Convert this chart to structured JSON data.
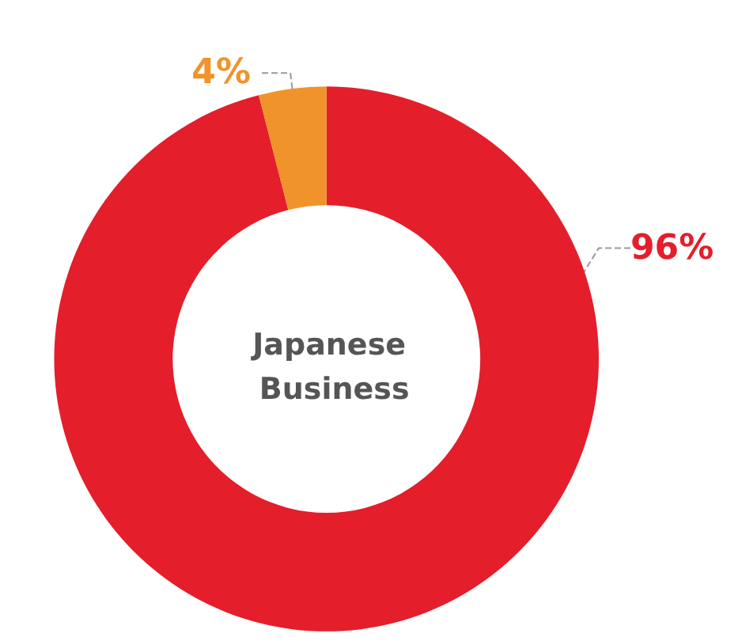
{
  "chart_data": {
    "type": "donut",
    "title": "Japanese Business",
    "categories": [
      null,
      null
    ],
    "values": [
      96,
      4
    ],
    "colors": [
      "#e41e2b",
      "#f0932b"
    ],
    "value_labels": [
      "96%",
      "4%"
    ]
  }
}
